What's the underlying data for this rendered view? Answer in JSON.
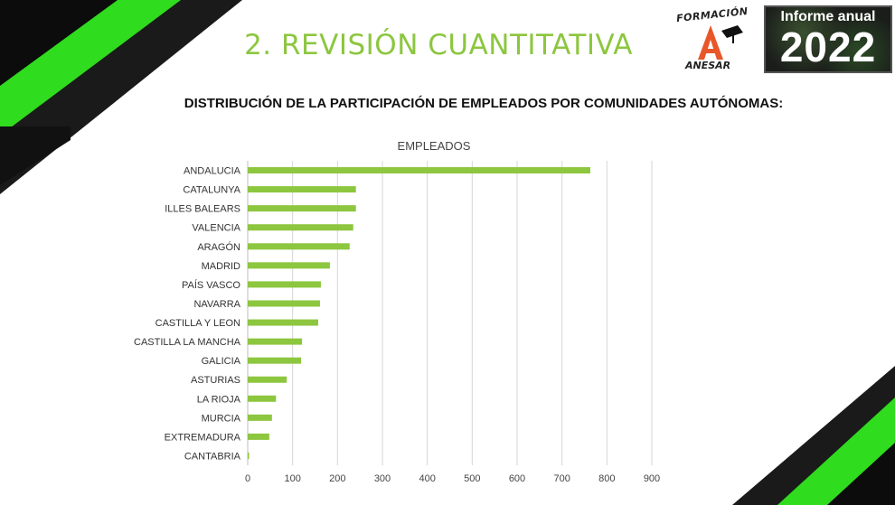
{
  "slide": {
    "title": "2. REVISIÓN CUANTITATIVA",
    "subtitle": "DISTRIBUCIÓN DE LA PARTICIPACIÓN DE EMPLEADOS POR COMUNIDADES AUTÓNOMAS:"
  },
  "logos": {
    "formacion_top": "FORMACIÓN",
    "formacion_bottom": "ANESAR",
    "badge_top": "Informe anual",
    "badge_year": "2022"
  },
  "colors": {
    "accent_green": "#8cc63f",
    "bar_green": "#8dc63f",
    "neon_green": "#39ff14",
    "logo_orange": "#e8562a"
  },
  "chart_data": {
    "type": "bar",
    "orientation": "horizontal",
    "title": "EMPLEADOS",
    "categories": [
      "ANDALUCIA",
      "CATALUNYA",
      "ILLES BALEARS",
      "VALENCIA",
      "ARAGÓN",
      "MADRID",
      "PAÍS VASCO",
      "NAVARRA",
      "CASTILLA Y LEON",
      "CASTILLA LA MANCHA",
      "GALICIA",
      "ASTURIAS",
      "LA RIOJA",
      "MURCIA",
      "EXTREMADURA",
      "CANTABRIA"
    ],
    "values": [
      763,
      241,
      241,
      235,
      227,
      183,
      163,
      161,
      157,
      121,
      119,
      87,
      63,
      54,
      48,
      2
    ],
    "xlim": [
      0,
      900
    ],
    "ticks": [
      0,
      100,
      200,
      300,
      400,
      500,
      600,
      700,
      800,
      900
    ],
    "grid": true
  }
}
